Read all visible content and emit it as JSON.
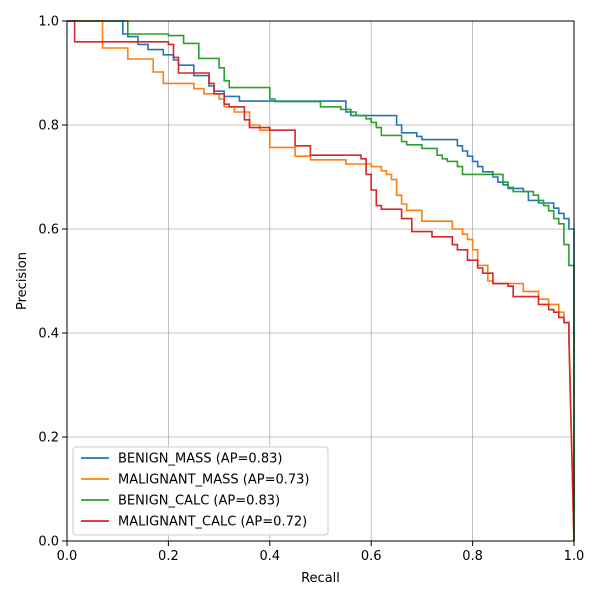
{
  "chart_data": {
    "type": "line",
    "title": "",
    "xlabel": "Recall",
    "ylabel": "Precision",
    "xlim": [
      0.0,
      1.0
    ],
    "ylim": [
      0.0,
      1.0
    ],
    "grid": true,
    "legend_location": "lower-left",
    "x_ticks": [
      "0.0",
      "0.2",
      "0.4",
      "0.6",
      "0.8",
      "1.0"
    ],
    "y_ticks": [
      "0.0",
      "0.2",
      "0.4",
      "0.6",
      "0.8",
      "1.0"
    ],
    "series": [
      {
        "name": "BENIGN_MASS (AP=0.83)",
        "color": "#1f77b4",
        "x": [
          0.0,
          0.11,
          0.11,
          0.12,
          0.12,
          0.14,
          0.14,
          0.16,
          0.16,
          0.19,
          0.19,
          0.21,
          0.21,
          0.22,
          0.22,
          0.25,
          0.25,
          0.28,
          0.28,
          0.29,
          0.29,
          0.31,
          0.31,
          0.34,
          0.34,
          0.55,
          0.55,
          0.56,
          0.56,
          0.65,
          0.65,
          0.66,
          0.66,
          0.69,
          0.69,
          0.7,
          0.7,
          0.77,
          0.77,
          0.78,
          0.78,
          0.79,
          0.79,
          0.8,
          0.8,
          0.81,
          0.81,
          0.82,
          0.82,
          0.84,
          0.84,
          0.85,
          0.85,
          0.86,
          0.86,
          0.87,
          0.87,
          0.9,
          0.9,
          0.91,
          0.91,
          0.93,
          0.93,
          0.96,
          0.96,
          0.97,
          0.97,
          0.98,
          0.98,
          0.99,
          0.99,
          1.0,
          1.0
        ],
        "y": [
          1.0,
          1.0,
          0.975,
          0.975,
          0.97,
          0.97,
          0.955,
          0.955,
          0.945,
          0.945,
          0.935,
          0.935,
          0.925,
          0.925,
          0.915,
          0.915,
          0.895,
          0.895,
          0.875,
          0.875,
          0.865,
          0.865,
          0.855,
          0.855,
          0.846,
          0.846,
          0.825,
          0.825,
          0.818,
          0.818,
          0.8,
          0.8,
          0.785,
          0.785,
          0.778,
          0.778,
          0.772,
          0.772,
          0.76,
          0.76,
          0.75,
          0.75,
          0.74,
          0.74,
          0.73,
          0.73,
          0.72,
          0.72,
          0.71,
          0.71,
          0.7,
          0.7,
          0.69,
          0.69,
          0.685,
          0.685,
          0.678,
          0.678,
          0.672,
          0.672,
          0.655,
          0.655,
          0.65,
          0.65,
          0.64,
          0.64,
          0.63,
          0.63,
          0.62,
          0.62,
          0.6,
          0.6,
          0.0
        ]
      },
      {
        "name": "MALIGNANT_MASS (AP=0.73)",
        "color": "#ff7f0e",
        "x": [
          0.0,
          0.07,
          0.07,
          0.12,
          0.12,
          0.17,
          0.17,
          0.19,
          0.19,
          0.25,
          0.25,
          0.27,
          0.27,
          0.3,
          0.3,
          0.31,
          0.31,
          0.33,
          0.33,
          0.36,
          0.36,
          0.38,
          0.38,
          0.4,
          0.4,
          0.45,
          0.45,
          0.48,
          0.48,
          0.55,
          0.55,
          0.6,
          0.6,
          0.62,
          0.62,
          0.63,
          0.63,
          0.64,
          0.64,
          0.65,
          0.65,
          0.66,
          0.66,
          0.67,
          0.67,
          0.7,
          0.7,
          0.76,
          0.76,
          0.78,
          0.78,
          0.79,
          0.79,
          0.8,
          0.8,
          0.81,
          0.81,
          0.83,
          0.83,
          0.84,
          0.84,
          0.9,
          0.9,
          0.93,
          0.93,
          0.95,
          0.95,
          0.97,
          0.97,
          0.98,
          0.98,
          0.99,
          0.99,
          1.0
        ],
        "y": [
          1.0,
          1.0,
          0.948,
          0.948,
          0.927,
          0.927,
          0.902,
          0.902,
          0.88,
          0.88,
          0.87,
          0.87,
          0.86,
          0.86,
          0.85,
          0.85,
          0.835,
          0.835,
          0.825,
          0.825,
          0.8,
          0.8,
          0.79,
          0.79,
          0.757,
          0.757,
          0.74,
          0.74,
          0.733,
          0.733,
          0.725,
          0.725,
          0.72,
          0.72,
          0.712,
          0.712,
          0.705,
          0.705,
          0.695,
          0.695,
          0.665,
          0.665,
          0.648,
          0.648,
          0.636,
          0.636,
          0.615,
          0.615,
          0.6,
          0.6,
          0.59,
          0.59,
          0.58,
          0.58,
          0.56,
          0.56,
          0.53,
          0.53,
          0.5,
          0.5,
          0.495,
          0.495,
          0.48,
          0.48,
          0.465,
          0.465,
          0.455,
          0.455,
          0.44,
          0.44,
          0.42,
          0.42,
          0.4,
          0.0
        ]
      },
      {
        "name": "BENIGN_CALC (AP=0.83)",
        "color": "#2ca02c",
        "x": [
          0.0,
          0.12,
          0.12,
          0.2,
          0.2,
          0.23,
          0.23,
          0.26,
          0.26,
          0.3,
          0.3,
          0.31,
          0.31,
          0.32,
          0.32,
          0.4,
          0.4,
          0.41,
          0.41,
          0.5,
          0.5,
          0.54,
          0.54,
          0.56,
          0.56,
          0.57,
          0.57,
          0.59,
          0.59,
          0.6,
          0.6,
          0.61,
          0.61,
          0.62,
          0.62,
          0.63,
          0.63,
          0.66,
          0.66,
          0.67,
          0.67,
          0.7,
          0.7,
          0.73,
          0.73,
          0.74,
          0.74,
          0.75,
          0.75,
          0.77,
          0.77,
          0.78,
          0.78,
          0.85,
          0.85,
          0.86,
          0.86,
          0.87,
          0.87,
          0.88,
          0.88,
          0.92,
          0.92,
          0.93,
          0.93,
          0.94,
          0.94,
          0.95,
          0.95,
          0.96,
          0.96,
          0.97,
          0.97,
          0.98,
          0.98,
          0.99,
          0.99,
          1.0,
          1.0
        ],
        "y": [
          1.0,
          1.0,
          0.975,
          0.975,
          0.972,
          0.972,
          0.957,
          0.957,
          0.928,
          0.928,
          0.91,
          0.91,
          0.885,
          0.885,
          0.872,
          0.872,
          0.85,
          0.85,
          0.845,
          0.845,
          0.835,
          0.835,
          0.83,
          0.83,
          0.825,
          0.825,
          0.818,
          0.818,
          0.812,
          0.812,
          0.805,
          0.805,
          0.795,
          0.795,
          0.78,
          0.78,
          0.78,
          0.78,
          0.768,
          0.768,
          0.762,
          0.762,
          0.755,
          0.755,
          0.742,
          0.742,
          0.735,
          0.735,
          0.73,
          0.73,
          0.72,
          0.72,
          0.705,
          0.705,
          0.705,
          0.705,
          0.69,
          0.69,
          0.68,
          0.68,
          0.672,
          0.672,
          0.665,
          0.665,
          0.655,
          0.655,
          0.645,
          0.645,
          0.635,
          0.635,
          0.62,
          0.62,
          0.61,
          0.61,
          0.57,
          0.57,
          0.53,
          0.53,
          0.0
        ]
      },
      {
        "name": "MALIGNANT_CALC (AP=0.72)",
        "color": "#d62728",
        "x": [
          0.0,
          0.015,
          0.015,
          0.2,
          0.2,
          0.21,
          0.21,
          0.22,
          0.22,
          0.28,
          0.28,
          0.29,
          0.29,
          0.31,
          0.31,
          0.32,
          0.32,
          0.35,
          0.35,
          0.36,
          0.36,
          0.4,
          0.4,
          0.45,
          0.45,
          0.48,
          0.48,
          0.58,
          0.58,
          0.59,
          0.59,
          0.6,
          0.6,
          0.61,
          0.61,
          0.62,
          0.62,
          0.66,
          0.66,
          0.68,
          0.68,
          0.72,
          0.72,
          0.76,
          0.76,
          0.77,
          0.77,
          0.79,
          0.79,
          0.81,
          0.81,
          0.82,
          0.82,
          0.84,
          0.84,
          0.87,
          0.87,
          0.88,
          0.88,
          0.93,
          0.93,
          0.95,
          0.95,
          0.96,
          0.96,
          0.97,
          0.97,
          0.98,
          0.98,
          0.99,
          0.99,
          1.0
        ],
        "y": [
          1.0,
          1.0,
          0.96,
          0.96,
          0.955,
          0.955,
          0.93,
          0.93,
          0.9,
          0.9,
          0.88,
          0.88,
          0.86,
          0.86,
          0.84,
          0.84,
          0.835,
          0.835,
          0.81,
          0.81,
          0.795,
          0.795,
          0.79,
          0.79,
          0.76,
          0.76,
          0.742,
          0.742,
          0.735,
          0.735,
          0.705,
          0.705,
          0.675,
          0.675,
          0.645,
          0.645,
          0.638,
          0.638,
          0.62,
          0.62,
          0.595,
          0.595,
          0.585,
          0.585,
          0.57,
          0.57,
          0.56,
          0.56,
          0.54,
          0.54,
          0.525,
          0.525,
          0.515,
          0.515,
          0.495,
          0.495,
          0.49,
          0.49,
          0.47,
          0.47,
          0.455,
          0.455,
          0.445,
          0.445,
          0.44,
          0.44,
          0.43,
          0.43,
          0.42,
          0.42,
          0.39,
          0.0
        ]
      }
    ]
  }
}
